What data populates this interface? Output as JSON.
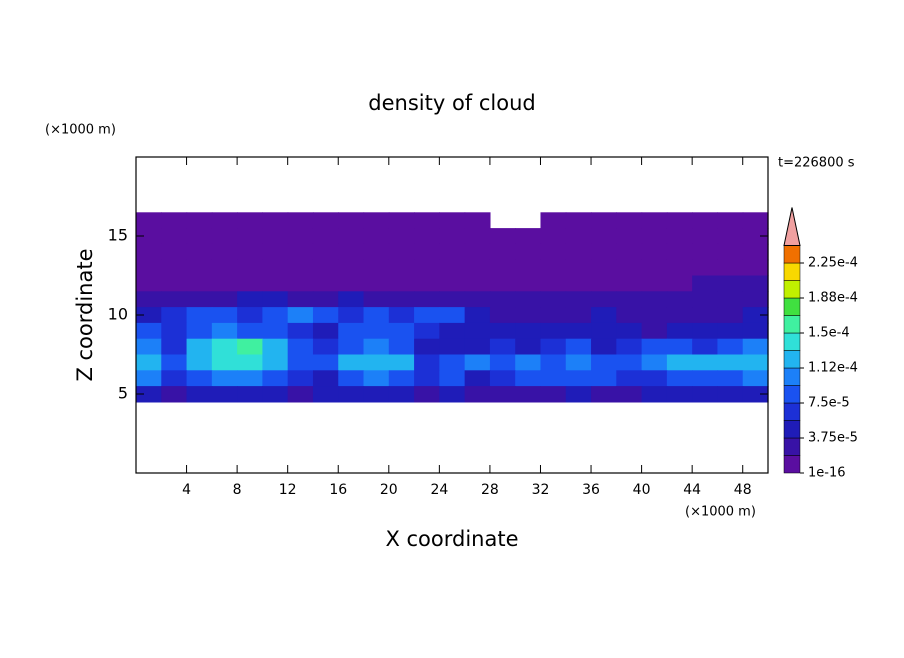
{
  "chart_data": {
    "type": "contour",
    "title": "density of cloud",
    "annotation": "t=226800 s",
    "xlabel": "X coordinate",
    "ylabel": "Z coordinate",
    "xunit": "(×1000 m)",
    "yunit": "(×1000 m)",
    "xlim": [
      0,
      50
    ],
    "ylim": [
      0,
      20
    ],
    "xticks": [
      4,
      8,
      12,
      16,
      20,
      24,
      28,
      32,
      36,
      40,
      44,
      48
    ],
    "yticks": [
      5,
      10,
      15
    ],
    "x": [
      1,
      3,
      5,
      7,
      9,
      11,
      13,
      15,
      17,
      19,
      21,
      23,
      25,
      27,
      29,
      31,
      33,
      35,
      37,
      39,
      41,
      43,
      45,
      47,
      49
    ],
    "z": [
      16,
      15,
      14,
      13,
      12,
      11,
      10,
      9,
      8,
      7,
      6,
      5
    ],
    "values": [
      [
        1e-05,
        1e-05,
        1e-05,
        1e-05,
        1e-05,
        1e-05,
        1e-05,
        1e-05,
        1e-05,
        1e-05,
        1e-05,
        1e-05,
        1e-05,
        1e-05,
        null,
        null,
        1e-05,
        1e-05,
        1e-05,
        1e-05,
        1e-05,
        1e-05,
        1e-05,
        1e-05,
        1e-05
      ],
      [
        1e-05,
        1e-05,
        1e-05,
        1e-05,
        1e-05,
        1e-05,
        1e-05,
        1e-05,
        1e-05,
        1e-05,
        1e-05,
        1e-05,
        1e-05,
        1e-05,
        1e-05,
        1e-05,
        1e-05,
        1e-05,
        1e-05,
        1e-05,
        1e-05,
        1e-05,
        1e-05,
        1e-05,
        1e-05
      ],
      [
        1e-05,
        1e-05,
        1e-05,
        1e-05,
        1e-05,
        1e-05,
        1e-05,
        1e-05,
        1e-05,
        1e-05,
        1e-05,
        1e-05,
        1e-05,
        1e-05,
        1e-05,
        1e-05,
        1e-05,
        1e-05,
        1e-05,
        1e-05,
        1e-05,
        1e-05,
        1e-05,
        1e-05,
        1e-05
      ],
      [
        1e-05,
        1e-05,
        1e-05,
        1e-05,
        1e-05,
        1e-05,
        1e-05,
        1e-05,
        1e-05,
        1e-05,
        1e-05,
        1e-05,
        1e-05,
        1e-05,
        1e-05,
        1e-05,
        1e-05,
        1e-05,
        1e-05,
        1e-05,
        1e-05,
        1e-05,
        1e-05,
        1e-05,
        1e-05
      ],
      [
        1e-05,
        1e-05,
        1e-05,
        1e-05,
        1e-05,
        1e-05,
        1e-05,
        1e-05,
        1e-05,
        1e-05,
        1e-05,
        1e-05,
        1e-05,
        1e-05,
        1e-05,
        1e-05,
        1e-05,
        1e-05,
        1e-05,
        1e-05,
        1e-05,
        1e-05,
        2.5e-05,
        2.5e-05,
        2.5e-05
      ],
      [
        2.5e-05,
        2.5e-05,
        2.5e-05,
        2.5e-05,
        4.5e-05,
        4.5e-05,
        2.5e-05,
        2.5e-05,
        4.5e-05,
        2.5e-05,
        2.5e-05,
        2.5e-05,
        2.5e-05,
        2.5e-05,
        2.5e-05,
        2.5e-05,
        2.5e-05,
        2.5e-05,
        2.5e-05,
        2.5e-05,
        2.5e-05,
        2.5e-05,
        2.5e-05,
        2.5e-05,
        2.5e-05
      ],
      [
        4.5e-05,
        6e-05,
        8e-05,
        8e-05,
        6e-05,
        8e-05,
        0.0001,
        8e-05,
        6e-05,
        8e-05,
        6e-05,
        8e-05,
        8e-05,
        4.5e-05,
        2.5e-05,
        2.5e-05,
        2.5e-05,
        2.5e-05,
        4.5e-05,
        2.5e-05,
        2.5e-05,
        2.5e-05,
        2.5e-05,
        2.5e-05,
        4.5e-05
      ],
      [
        8e-05,
        6e-05,
        8e-05,
        0.0001,
        8e-05,
        8e-05,
        6e-05,
        4.5e-05,
        8e-05,
        8e-05,
        8e-05,
        6e-05,
        4.5e-05,
        4.5e-05,
        4.5e-05,
        4.5e-05,
        4.5e-05,
        4.5e-05,
        4.5e-05,
        4.5e-05,
        2.5e-05,
        4.5e-05,
        4.5e-05,
        4.5e-05,
        4.5e-05
      ],
      [
        0.0001,
        6e-05,
        0.00012,
        0.00014,
        0.00016,
        0.00012,
        8e-05,
        6e-05,
        8e-05,
        0.0001,
        8e-05,
        4.5e-05,
        4.5e-05,
        4.5e-05,
        6e-05,
        4.5e-05,
        6e-05,
        8e-05,
        4.5e-05,
        6e-05,
        8e-05,
        8e-05,
        6e-05,
        8e-05,
        0.0001
      ],
      [
        0.00012,
        8e-05,
        0.00012,
        0.00014,
        0.00014,
        0.00012,
        8e-05,
        8e-05,
        0.00012,
        0.00012,
        0.00012,
        6e-05,
        8e-05,
        0.0001,
        8e-05,
        0.0001,
        8e-05,
        0.0001,
        8e-05,
        8e-05,
        0.0001,
        0.00012,
        0.00012,
        0.00012,
        0.00012
      ],
      [
        0.0001,
        6e-05,
        8e-05,
        0.0001,
        0.0001,
        8e-05,
        6e-05,
        4.5e-05,
        8e-05,
        0.0001,
        8e-05,
        6e-05,
        8e-05,
        4.5e-05,
        6e-05,
        8e-05,
        8e-05,
        8e-05,
        8e-05,
        6e-05,
        6e-05,
        8e-05,
        8e-05,
        8e-05,
        0.0001
      ],
      [
        4.5e-05,
        2.5e-05,
        4.5e-05,
        4.5e-05,
        4.5e-05,
        4.5e-05,
        2.5e-05,
        4.5e-05,
        4.5e-05,
        4.5e-05,
        4.5e-05,
        2.5e-05,
        4.5e-05,
        2.5e-05,
        2.5e-05,
        2.5e-05,
        2.5e-05,
        4.5e-05,
        2.5e-05,
        2.5e-05,
        4.5e-05,
        4.5e-05,
        4.5e-05,
        4.5e-05,
        4.5e-05
      ]
    ],
    "levels": [
      1e-16,
      1.875e-05,
      3.75e-05,
      5.625e-05,
      7.5e-05,
      9.375e-05,
      0.0001125,
      0.00013125,
      0.00015,
      0.00016875,
      0.0001875,
      0.00020625,
      0.000225,
      0.00024375
    ],
    "colors": [
      "#5a0ea0",
      "#3812a6",
      "#1f1cb8",
      "#1c30d6",
      "#1a52f0",
      "#1c80f8",
      "#22b4f0",
      "#30e0d8",
      "#40f0a0",
      "#40e040",
      "#c0f000",
      "#f8d800",
      "#f07000"
    ],
    "extend_color": "#f0a0a0",
    "cbar_ticks": [
      {
        "value": 1e-16,
        "label": "1e-16"
      },
      {
        "value": 3.75e-05,
        "label": "3.75e-5"
      },
      {
        "value": 7.5e-05,
        "label": "7.5e-5"
      },
      {
        "value": 0.0001125,
        "label": "1.12e-4"
      },
      {
        "value": 0.00015,
        "label": "1.5e-4"
      },
      {
        "value": 0.0001875,
        "label": "1.88e-4"
      },
      {
        "value": 0.000225,
        "label": "2.25e-4"
      }
    ]
  }
}
